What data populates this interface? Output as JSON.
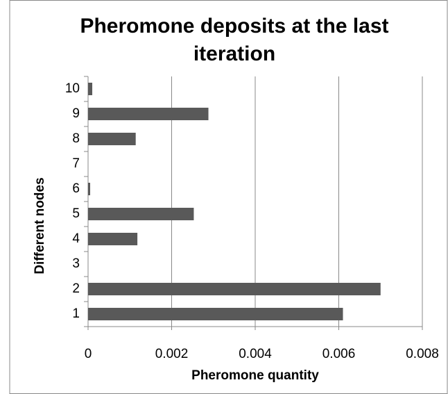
{
  "chart_data": {
    "type": "barh",
    "title": "Pheromone deposits at the last iteration",
    "xlabel": "Pheromone quantity",
    "ylabel": "Different nodes",
    "categories": [
      "1",
      "2",
      "3",
      "4",
      "5",
      "6",
      "7",
      "8",
      "9",
      "10"
    ],
    "values": [
      0.0061,
      0.007,
      0,
      0.00118,
      0.00253,
      5e-05,
      0,
      0.00114,
      0.00288,
      0.0001
    ],
    "color": "#595959",
    "xlim": [
      0,
      0.008
    ],
    "xticks": [
      0,
      0.002,
      0.004,
      0.006,
      0.008
    ],
    "grid": true
  }
}
